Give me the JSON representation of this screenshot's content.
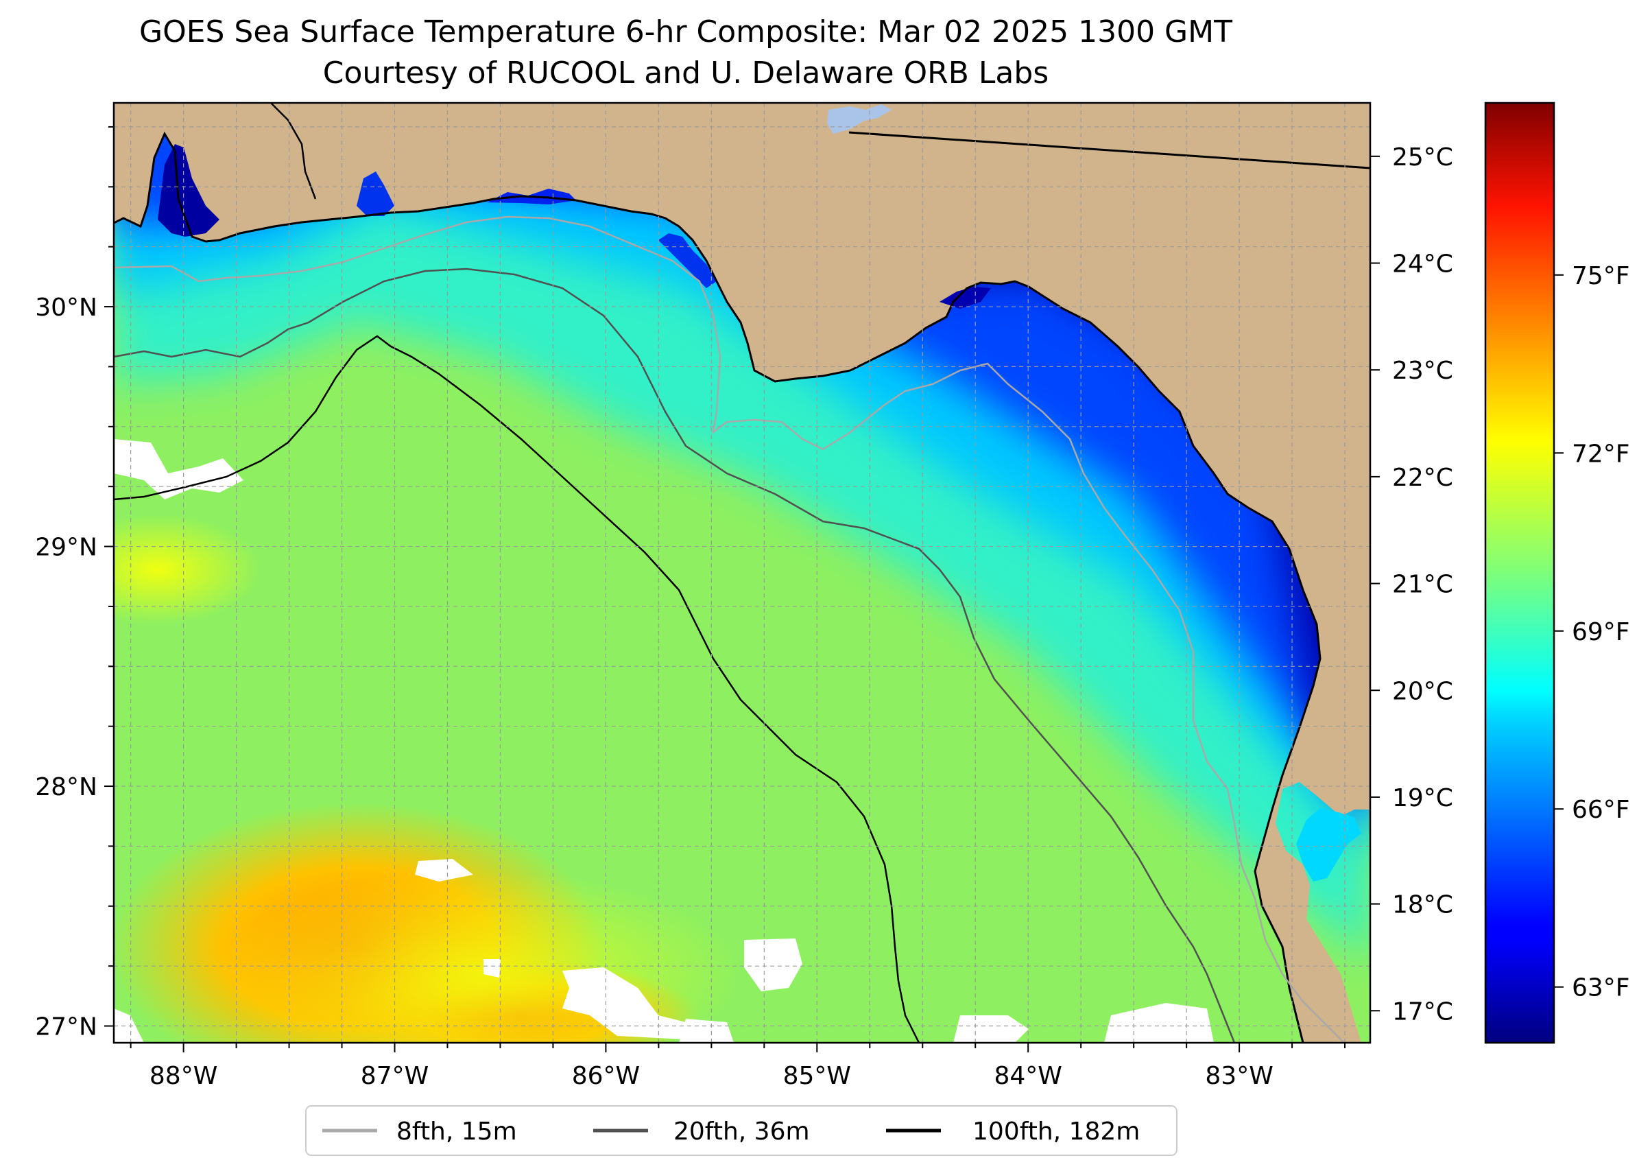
{
  "title": {
    "line1": "GOES Sea Surface Temperature 6-hr Composite: Mar 02 2025 1300 GMT",
    "line2": "Courtesy of RUCOOL and U. Delaware ORB Labs"
  },
  "map": {
    "lon_range": [
      -88.33,
      -82.38
    ],
    "lat_range": [
      26.93,
      30.85
    ],
    "lon_ticks": [
      {
        "value": -88,
        "label": "88°W"
      },
      {
        "value": -87,
        "label": "87°W"
      },
      {
        "value": -86,
        "label": "86°W"
      },
      {
        "value": -85,
        "label": "85°W"
      },
      {
        "value": -84,
        "label": "84°W"
      },
      {
        "value": -83,
        "label": "83°W"
      }
    ],
    "lat_ticks": [
      {
        "value": 27,
        "label": "27°N"
      },
      {
        "value": 28,
        "label": "28°N"
      },
      {
        "value": 29,
        "label": "29°N"
      },
      {
        "value": 30,
        "label": "30°N"
      }
    ],
    "gridlines": true,
    "land_color": "#d2b48c",
    "colormap": "jet"
  },
  "colorbar": {
    "celsius_range": [
      16.7,
      25.5
    ],
    "celsius_ticks": [
      {
        "value": 17,
        "label": "17°C"
      },
      {
        "value": 18,
        "label": "18°C"
      },
      {
        "value": 19,
        "label": "19°C"
      },
      {
        "value": 20,
        "label": "20°C"
      },
      {
        "value": 21,
        "label": "21°C"
      },
      {
        "value": 22,
        "label": "22°C"
      },
      {
        "value": 23,
        "label": "23°C"
      },
      {
        "value": 24,
        "label": "24°C"
      },
      {
        "value": 25,
        "label": "25°C"
      }
    ],
    "fahrenheit_ticks": [
      {
        "value": 63,
        "label": "63°F"
      },
      {
        "value": 66,
        "label": "66°F"
      },
      {
        "value": 69,
        "label": "69°F"
      },
      {
        "value": 72,
        "label": "72°F"
      },
      {
        "value": 75,
        "label": "75°F"
      }
    ]
  },
  "legend": {
    "position": "bottom-center",
    "items": [
      {
        "label": "8fth, 15m",
        "color": "#a9a9a9"
      },
      {
        "label": "20fth, 36m",
        "color": "#505050"
      },
      {
        "label": "100fth, 182m",
        "color": "#000000"
      }
    ]
  }
}
